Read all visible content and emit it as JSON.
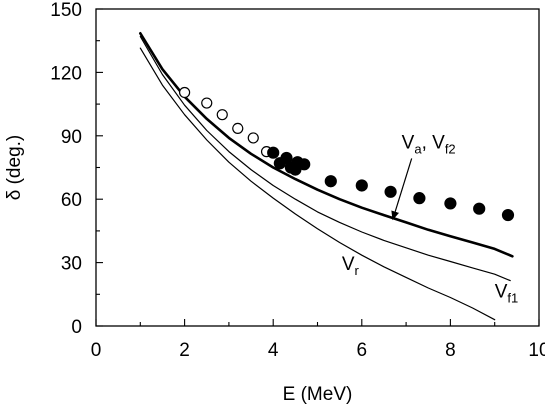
{
  "chart_data": {
    "type": "line",
    "xlabel": "E (MeV)",
    "ylabel": "δ (deg.)",
    "xlim": [
      0,
      10
    ],
    "ylim": [
      0,
      150
    ],
    "xticks": [
      0,
      2,
      4,
      6,
      8,
      10
    ],
    "yticks": [
      0,
      30,
      60,
      90,
      120,
      150
    ],
    "grid": false,
    "series": [
      {
        "key": "va_vf2",
        "style": "thick-line",
        "points": [
          [
            1.0,
            138.5
          ],
          [
            1.5,
            121.5
          ],
          [
            2.0,
            108.5
          ],
          [
            2.5,
            98.0
          ],
          [
            3.0,
            89.0
          ],
          [
            3.5,
            81.5
          ],
          [
            4.0,
            75.0
          ],
          [
            4.5,
            69.5
          ],
          [
            5.0,
            64.5
          ],
          [
            5.5,
            60.0
          ],
          [
            6.0,
            56.0
          ],
          [
            6.5,
            52.5
          ],
          [
            7.0,
            49.0
          ],
          [
            7.5,
            45.5
          ],
          [
            8.0,
            42.5
          ],
          [
            8.5,
            39.5
          ],
          [
            9.0,
            36.5
          ],
          [
            9.4,
            33.0
          ]
        ]
      },
      {
        "key": "vf1",
        "style": "thin-line",
        "points": [
          [
            1.0,
            137.0
          ],
          [
            1.5,
            119.0
          ],
          [
            2.0,
            104.5
          ],
          [
            2.5,
            92.5
          ],
          [
            3.0,
            82.5
          ],
          [
            3.5,
            74.0
          ],
          [
            4.0,
            66.5
          ],
          [
            4.5,
            60.0
          ],
          [
            5.0,
            54.0
          ],
          [
            5.5,
            49.0
          ],
          [
            6.0,
            44.5
          ],
          [
            6.5,
            40.5
          ],
          [
            7.0,
            37.0
          ],
          [
            7.5,
            33.5
          ],
          [
            8.0,
            30.5
          ],
          [
            8.5,
            27.5
          ],
          [
            9.0,
            24.5
          ],
          [
            9.35,
            21.5
          ]
        ]
      },
      {
        "key": "vr",
        "style": "thin-line",
        "points": [
          [
            1.0,
            131.5
          ],
          [
            1.5,
            114.0
          ],
          [
            2.0,
            100.0
          ],
          [
            2.5,
            88.0
          ],
          [
            3.0,
            77.5
          ],
          [
            3.5,
            68.5
          ],
          [
            4.0,
            60.5
          ],
          [
            4.5,
            53.0
          ],
          [
            5.0,
            46.0
          ],
          [
            5.5,
            39.5
          ],
          [
            6.0,
            33.5
          ],
          [
            6.5,
            28.0
          ],
          [
            7.0,
            23.0
          ],
          [
            7.5,
            18.0
          ],
          [
            8.0,
            13.5
          ],
          [
            8.5,
            8.5
          ],
          [
            9.0,
            3.0
          ]
        ]
      },
      {
        "key": "open_points",
        "style": "open-circle",
        "points": [
          [
            2.0,
            110.5
          ],
          [
            2.5,
            105.5
          ],
          [
            2.85,
            100.0
          ],
          [
            3.2,
            93.5
          ],
          [
            3.55,
            89.0
          ],
          [
            3.85,
            82.5
          ]
        ]
      },
      {
        "key": "filled_points",
        "style": "filled-circle",
        "points": [
          [
            4.0,
            82.0
          ],
          [
            4.15,
            77.0
          ],
          [
            4.3,
            79.5
          ],
          [
            4.4,
            75.0
          ],
          [
            4.5,
            74.0
          ],
          [
            4.55,
            77.5
          ],
          [
            4.7,
            76.5
          ],
          [
            5.3,
            68.5
          ],
          [
            6.0,
            66.5
          ],
          [
            6.65,
            63.5
          ],
          [
            7.3,
            60.5
          ],
          [
            8.0,
            58.0
          ],
          [
            8.65,
            55.5
          ],
          [
            9.3,
            52.5
          ]
        ]
      }
    ],
    "annotations": [
      {
        "key": "ann_va",
        "parts": [
          "V",
          "a",
          ", V",
          "f2"
        ],
        "anchor": [
          6.9,
          84.0
        ],
        "arrow_to": [
          6.7,
          50.5
        ]
      },
      {
        "key": "ann_vr",
        "parts": [
          "V",
          "r"
        ],
        "anchor": [
          5.55,
          26.5
        ]
      },
      {
        "key": "ann_vf1",
        "parts": [
          "V",
          "f1"
        ],
        "anchor": [
          9.0,
          13.5
        ]
      }
    ]
  }
}
